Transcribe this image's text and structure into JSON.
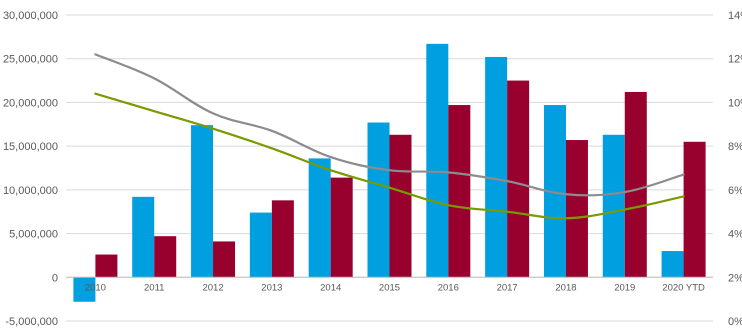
{
  "chart_data": {
    "type": "bar",
    "title": "",
    "xlabel": "",
    "ylabel": "",
    "categories": [
      "2010",
      "2011",
      "2012",
      "2013",
      "2014",
      "2015",
      "2016",
      "2017",
      "2018",
      "2019",
      "2020 YTD"
    ],
    "ylim": [
      -5000000,
      30000000
    ],
    "y_ticks": [
      "-5,000,000",
      "0",
      "5,000,000",
      "10,000,000",
      "15,000,000",
      "20,000,000",
      "25,000,000",
      "30,000,000"
    ],
    "y2lim": [
      0,
      14
    ],
    "y2_ticks": [
      "0%",
      "2%",
      "4%",
      "6%",
      "8%",
      "10%",
      "12%",
      "14%"
    ],
    "grid": true,
    "legend": "none",
    "series": [
      {
        "type": "bar",
        "axis": "left",
        "color": "#009fdf",
        "values": [
          -2800000,
          9200000,
          17400000,
          7400000,
          13600000,
          17700000,
          26700000,
          25200000,
          19700000,
          16300000,
          3000000
        ]
      },
      {
        "type": "bar",
        "axis": "left",
        "color": "#98002e",
        "values": [
          2600000,
          4700000,
          4100000,
          8800000,
          11400000,
          16300000,
          19700000,
          22500000,
          15700000,
          21200000,
          15500000
        ]
      },
      {
        "type": "line",
        "axis": "right",
        "color": "#8c8c8c",
        "values": [
          12.2,
          11.1,
          9.5,
          8.7,
          7.5,
          6.9,
          6.8,
          6.4,
          5.8,
          5.9,
          6.7
        ]
      },
      {
        "type": "line",
        "axis": "right",
        "color": "#7a9a01",
        "values": [
          10.4,
          9.6,
          8.8,
          7.9,
          6.9,
          6.1,
          5.3,
          5.0,
          4.7,
          5.1,
          5.7
        ]
      }
    ]
  }
}
